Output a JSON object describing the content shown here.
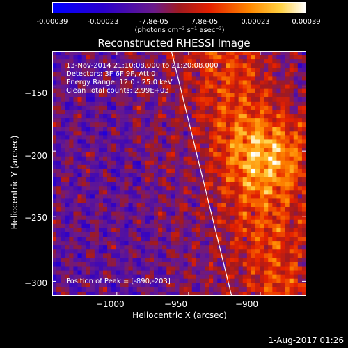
{
  "colorbar": {
    "tick_labels": [
      "-0.00039",
      "-0.00023",
      "-7.8e-05",
      "7.8e-05",
      "0.00023",
      "0.00039"
    ],
    "units_label": "(photons cm⁻² s⁻¹ asec⁻²)",
    "range": [
      -0.00039,
      0.00039
    ]
  },
  "chart_data": {
    "type": "heatmap",
    "title": "Reconstructed RHESSI Image",
    "xlabel": "Heliocentric X (arcsec)",
    "ylabel": "Heliocentric Y (arcsec)",
    "xlim": [
      -1045,
      -868
    ],
    "ylim": [
      -311,
      -123
    ],
    "x_ticks": [
      -1000,
      -950,
      -900
    ],
    "x_tick_labels": [
      "−1000",
      "−950",
      "−900"
    ],
    "y_ticks": [
      -300,
      -250,
      -200,
      -150
    ],
    "y_tick_labels": [
      "−300",
      "−250",
      "−200",
      "−150"
    ],
    "annotations": [
      "13-Nov-2014 21:10:08.000 to 21:20:08.000",
      "Detectors: 3F 6F 9F, Att 0",
      "Energy Range: 12.0 - 25.0 keV",
      "Clean    Total counts: 2.99E+03"
    ],
    "peak_label": "Position of Peak = [-890,-203]",
    "peak": [
      -890,
      -203
    ],
    "limb_line": [
      [
        -962,
        -123
      ],
      [
        -920,
        -311
      ]
    ]
  },
  "footer": {
    "date": "1-Aug-2017 01:26"
  }
}
